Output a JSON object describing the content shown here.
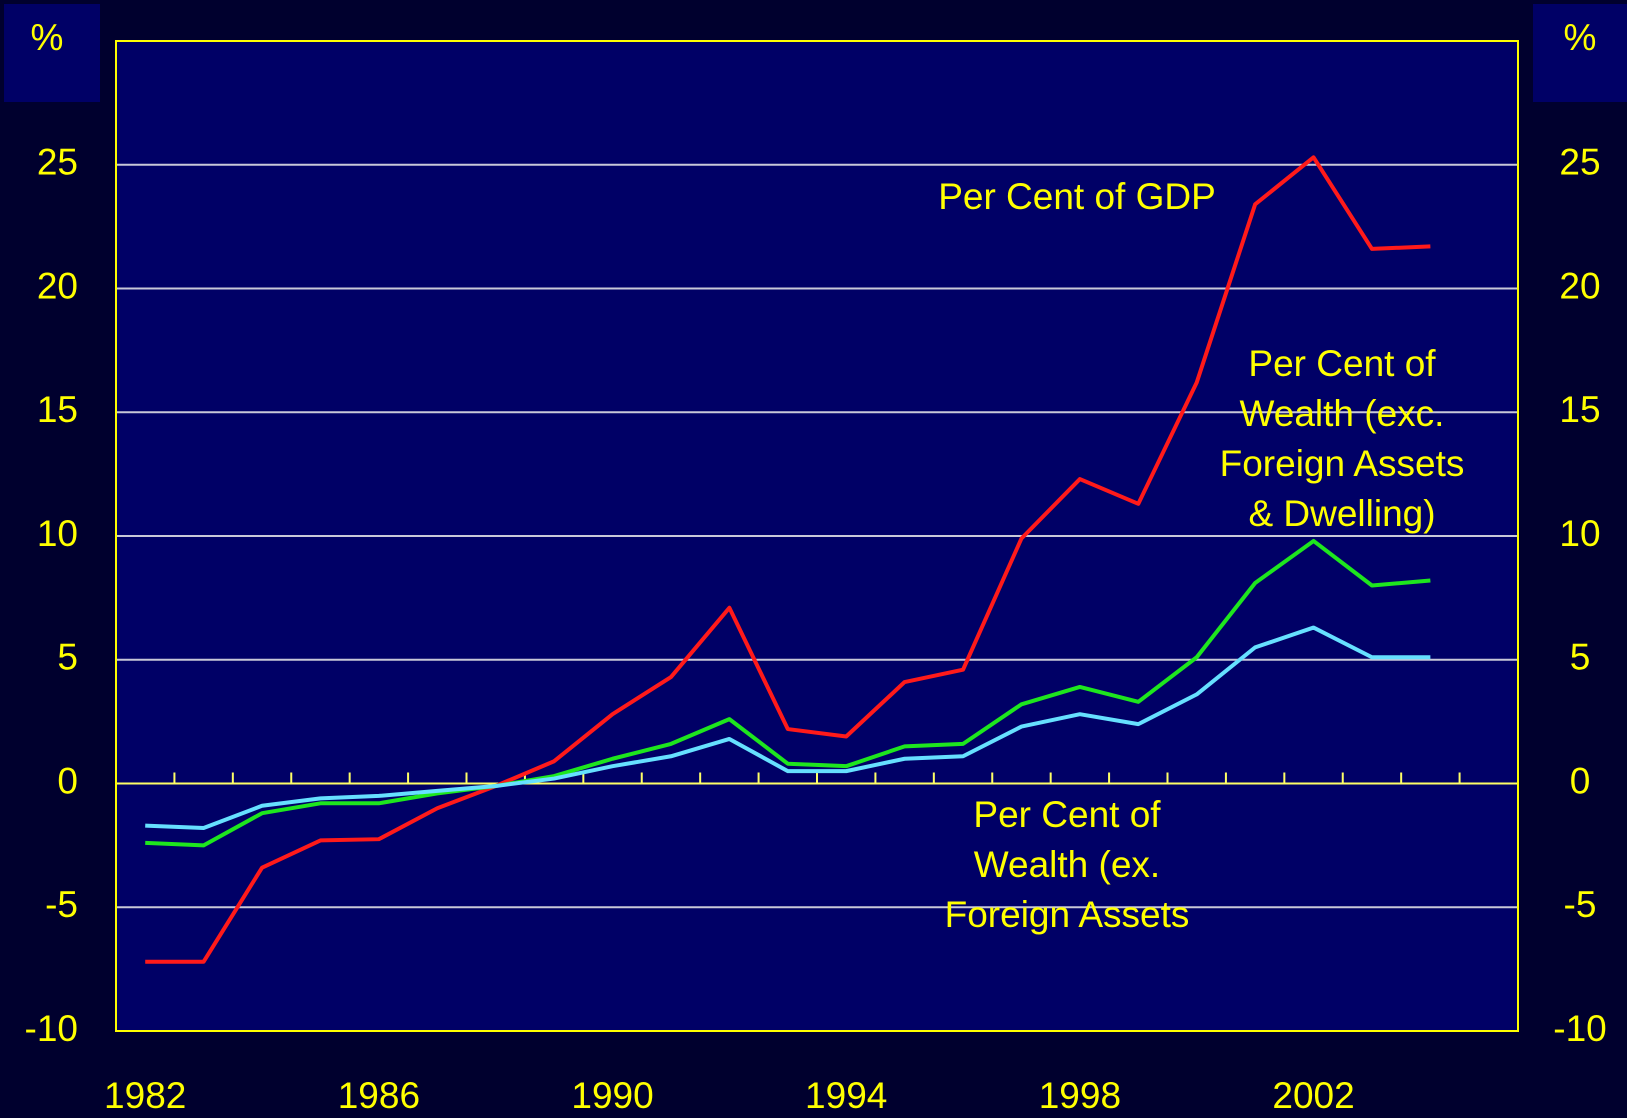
{
  "chart_data": {
    "type": "line",
    "y_unit_label": "%",
    "y2_unit_label": "%",
    "x": [
      1982,
      1983,
      1984,
      1985,
      1986,
      1987,
      1988,
      1989,
      1990,
      1991,
      1992,
      1993,
      1994,
      1995,
      1996,
      1997,
      1998,
      1999,
      2000,
      2001,
      2002,
      2003,
      2004
    ],
    "series": [
      {
        "color": "#ff1a1a",
        "values": [
          -7.2,
          -7.2,
          -3.4,
          -2.3,
          -2.25,
          -1.0,
          -0.1,
          0.9,
          2.8,
          4.3,
          7.1,
          2.2,
          1.9,
          4.1,
          4.6,
          9.9,
          12.3,
          11.3,
          16.2,
          23.4,
          25.3,
          21.6,
          21.7
        ]
      },
      {
        "color": "#1ee61e",
        "values": [
          -2.4,
          -2.5,
          -1.2,
          -0.8,
          -0.8,
          -0.4,
          -0.1,
          0.3,
          1.0,
          1.6,
          2.6,
          0.8,
          0.7,
          1.5,
          1.6,
          3.2,
          3.9,
          3.3,
          5.1,
          8.1,
          9.8,
          8.0,
          8.2
        ]
      },
      {
        "color": "#66e0ff",
        "values": [
          -1.7,
          -1.8,
          -0.9,
          -0.6,
          -0.5,
          -0.3,
          -0.1,
          0.2,
          0.7,
          1.1,
          1.8,
          0.5,
          0.5,
          1.0,
          1.1,
          2.3,
          2.8,
          2.4,
          3.6,
          5.5,
          6.3,
          5.1,
          5.1
        ]
      }
    ],
    "annotations": [
      {
        "lines": [
          "Per Cent of GDP"
        ]
      },
      {
        "lines": [
          "Per Cent of",
          "Wealth (exc.",
          "Foreign Assets",
          "& Dwelling)"
        ]
      },
      {
        "lines": [
          "Per Cent of",
          "Wealth (ex.",
          "Foreign Assets"
        ]
      }
    ],
    "xlim": [
      1981.5,
      2005.5
    ],
    "xticks": [
      1982,
      1986,
      1990,
      1994,
      1998,
      2002
    ],
    "x_minor_ticks": [
      1982.5,
      1983.5,
      1984.5,
      1985.5,
      1986.5,
      1987.5,
      1988.5,
      1989.5,
      1990.5,
      1991.5,
      1992.5,
      1993.5,
      1994.5,
      1995.5,
      1996.5,
      1997.5,
      1998.5,
      1999.5,
      2000.5,
      2001.5,
      2002.5,
      2003.5,
      2004.5
    ],
    "ylim": [
      -10,
      30
    ],
    "yticks": [
      -10,
      -5,
      0,
      5,
      10,
      15,
      20,
      25
    ],
    "y2lim": [
      -10,
      30
    ],
    "y2ticks": [
      -10,
      -5,
      0,
      5,
      10,
      15,
      20,
      25
    ],
    "grid": true
  }
}
